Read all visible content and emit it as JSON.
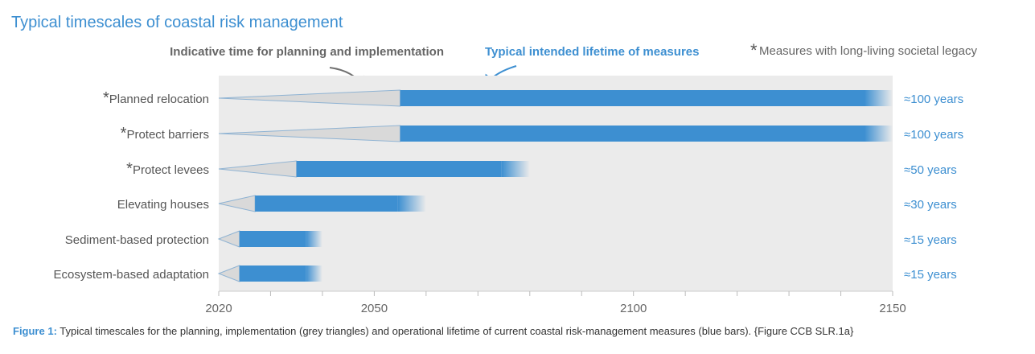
{
  "chart_data": {
    "type": "bar",
    "title": "Typical timescales of coastal risk management",
    "annotations": {
      "planning": "Indicative time for planning and implementation",
      "lifetime": "Typical intended lifetime of measures",
      "legacy_star": "*",
      "legacy": "Measures with long-living societal legacy"
    },
    "xlim": [
      2020,
      2150
    ],
    "x_ticks": [
      2020,
      2050,
      2100,
      2150
    ],
    "minor_tick_step": 10,
    "grid": false,
    "colors": {
      "lifetime": "#3d8fd1",
      "planning": "#d9d9d9",
      "background": "#ebebeb",
      "title": "#3d8fd1"
    },
    "rows": [
      {
        "label": "Planned relocation",
        "legacy": true,
        "planning": [
          2020,
          2055
        ],
        "lifetime": [
          2055,
          2150
        ],
        "duration_label": "≈100 years"
      },
      {
        "label": "Protect barriers",
        "legacy": true,
        "planning": [
          2020,
          2055
        ],
        "lifetime": [
          2055,
          2150
        ],
        "duration_label": "≈100 years"
      },
      {
        "label": "Protect levees",
        "legacy": true,
        "planning": [
          2020,
          2035
        ],
        "lifetime": [
          2035,
          2080
        ],
        "duration_label": "≈50 years"
      },
      {
        "label": "Elevating houses",
        "legacy": false,
        "planning": [
          2020,
          2027
        ],
        "lifetime": [
          2027,
          2060
        ],
        "duration_label": "≈30 years"
      },
      {
        "label": "Sediment-based protection",
        "legacy": false,
        "planning": [
          2020,
          2024
        ],
        "lifetime": [
          2024,
          2040
        ],
        "duration_label": "≈15 years"
      },
      {
        "label": "Ecosystem-based adaptation",
        "legacy": false,
        "planning": [
          2020,
          2024
        ],
        "lifetime": [
          2024,
          2040
        ],
        "duration_label": "≈15 years"
      }
    ]
  },
  "caption": {
    "prefix": "Figure 1:",
    "text": " Typical timescales for the planning, implementation (grey triangles) and operational lifetime of current coastal risk-management measures (blue bars). {Figure CCB SLR.1a}"
  }
}
